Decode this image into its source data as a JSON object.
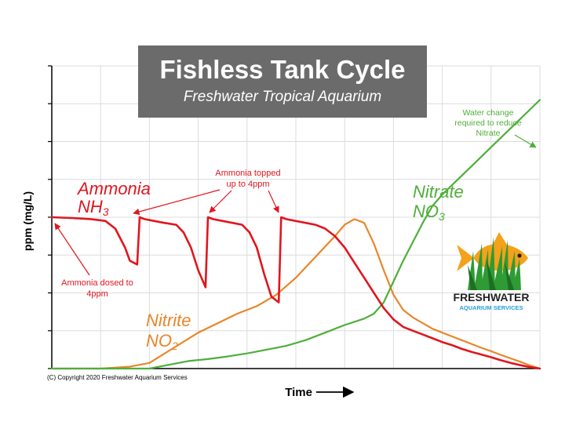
{
  "colors": {
    "ammonia": "#e0161e",
    "nitrite": "#e8862a",
    "nitrate": "#4fae3a",
    "grid": "#dcdcdc",
    "title_box": "#6b6b6b",
    "logo_blue": "#2aa0d8"
  },
  "title_box": {
    "title": "Fishless Tank Cycle",
    "subtitle": "Freshwater Tropical Aquarium"
  },
  "annotations": {
    "ammonia_name": "Ammonia",
    "ammonia_formula_main": "NH",
    "ammonia_formula_sub": "3",
    "nitrite_name": "Nitrite",
    "nitrite_formula_main": "NO",
    "nitrite_formula_sub": "2",
    "nitrate_name": "Nitrate",
    "nitrate_formula_main": "NO",
    "nitrate_formula_sub": "3",
    "topped_line1": "Ammonia topped",
    "topped_line2": "up to 4ppm",
    "dosed_line1": "Ammonia dosed to",
    "dosed_line2": "4ppm",
    "water_line1": "Water change",
    "water_line2": "required to reduce",
    "water_line3": "Nitrate"
  },
  "logo": {
    "line1": "FRESHWATER",
    "line2": "AQUARIUM SERVICES",
    "icon": "fish-in-plants-icon"
  },
  "copyright": "(C) Copyright 2020 Freshwater Aquarium Services",
  "chart_data": {
    "type": "line",
    "xlabel": "Time",
    "ylabel": "ppm (mg/L)",
    "xlim": [
      0,
      100
    ],
    "ylim": [
      0,
      8
    ],
    "grid": true,
    "series": [
      {
        "name": "Ammonia NH3",
        "color": "#e0161e",
        "x": [
          0,
          4,
          8,
          11,
          13,
          15,
          16,
          17.5,
          18,
          19,
          21,
          23,
          25.5,
          27,
          28.5,
          30,
          31.5,
          32,
          33,
          35,
          37,
          39,
          40.5,
          42,
          43.5,
          45,
          46.5,
          47,
          48,
          50,
          52,
          54,
          56,
          58,
          60,
          62,
          64,
          66,
          68,
          70,
          72,
          74,
          76,
          78,
          80,
          82,
          84,
          86,
          88,
          90,
          92,
          94,
          96,
          98,
          100
        ],
        "y": [
          4.0,
          3.98,
          3.95,
          3.9,
          3.7,
          3.2,
          2.85,
          2.75,
          4.0,
          3.95,
          3.9,
          3.85,
          3.8,
          3.6,
          3.2,
          2.6,
          2.15,
          4.0,
          3.95,
          3.9,
          3.85,
          3.8,
          3.6,
          3.2,
          2.5,
          1.9,
          1.75,
          4.0,
          3.95,
          3.9,
          3.85,
          3.8,
          3.7,
          3.5,
          3.2,
          2.8,
          2.4,
          2.0,
          1.6,
          1.3,
          1.1,
          1.0,
          0.9,
          0.8,
          0.7,
          0.62,
          0.52,
          0.44,
          0.37,
          0.3,
          0.22,
          0.15,
          0.09,
          0.04,
          0.0
        ]
      },
      {
        "name": "Nitrite NO2",
        "color": "#e8862a",
        "x": [
          0,
          10,
          16,
          20,
          25,
          30,
          34,
          38,
          42,
          46,
          50,
          54,
          58,
          60,
          62,
          64,
          66,
          68,
          70,
          72,
          74,
          76,
          78,
          80,
          82,
          84,
          86,
          88,
          90,
          92,
          94,
          96,
          98,
          100
        ],
        "y": [
          0.0,
          0.0,
          0.05,
          0.15,
          0.55,
          0.95,
          1.2,
          1.45,
          1.65,
          1.95,
          2.4,
          2.95,
          3.5,
          3.8,
          3.95,
          3.85,
          3.3,
          2.6,
          1.95,
          1.55,
          1.35,
          1.2,
          1.05,
          0.95,
          0.85,
          0.75,
          0.65,
          0.55,
          0.46,
          0.36,
          0.27,
          0.18,
          0.08,
          0.0
        ]
      },
      {
        "name": "Nitrate NO3",
        "color": "#4fae3a",
        "x": [
          0,
          20,
          24,
          28,
          32,
          36,
          40,
          44,
          48,
          52,
          56,
          60,
          64,
          66,
          68,
          70,
          72,
          74,
          76,
          78,
          80,
          82,
          84,
          86,
          88,
          90,
          92,
          94,
          96,
          98,
          100
        ],
        "y": [
          0.0,
          0.0,
          0.1,
          0.2,
          0.25,
          0.32,
          0.4,
          0.5,
          0.6,
          0.75,
          0.95,
          1.15,
          1.32,
          1.45,
          1.75,
          2.3,
          2.85,
          3.35,
          3.85,
          4.3,
          4.6,
          4.85,
          5.1,
          5.35,
          5.6,
          5.85,
          6.1,
          6.35,
          6.6,
          6.85,
          7.1
        ]
      }
    ]
  }
}
